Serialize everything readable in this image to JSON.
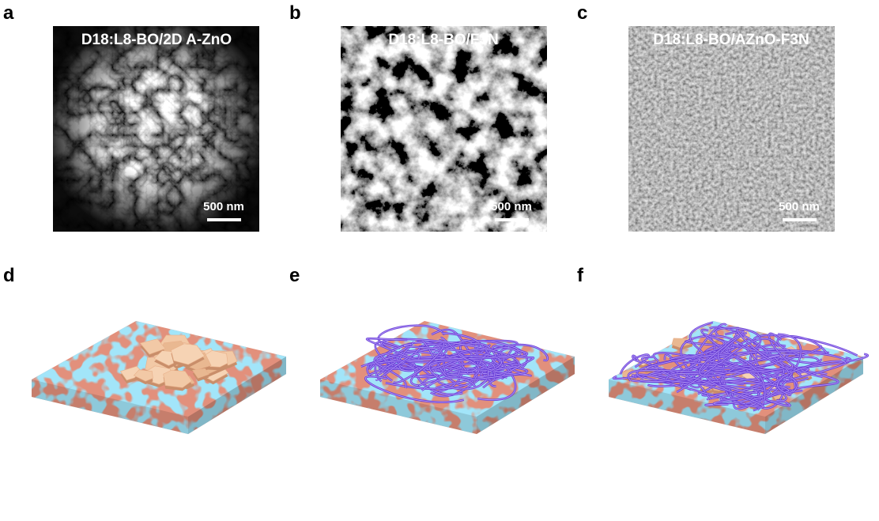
{
  "panels": [
    {
      "label": "a",
      "title": "D18:L8-BO/2D A-ZnO",
      "scale_bar": "500 nm"
    },
    {
      "label": "b",
      "title": "D18:L8-BO/F3N",
      "scale_bar": "500 nm"
    },
    {
      "label": "c",
      "title": "D18:L8-BO/AZnO-F3N",
      "scale_bar": "500 nm"
    },
    {
      "label": "d"
    },
    {
      "label": "e"
    },
    {
      "label": "f"
    }
  ]
}
